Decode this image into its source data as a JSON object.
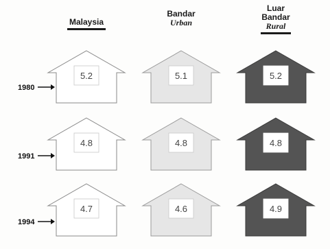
{
  "chart_data": {
    "type": "table",
    "columns": [
      {
        "label": "Malaysia",
        "sublabel": "",
        "fill": "#ffffff",
        "stroke": "#8a8a8a"
      },
      {
        "label": "Bandar",
        "sublabel": "Urban",
        "fill": "#e6e6e6",
        "stroke": "#9a9a9a"
      },
      {
        "label": "Luar Bandar",
        "sublabel": "Rural",
        "fill": "#545454",
        "stroke": "#3a3a3a"
      }
    ],
    "rows": [
      {
        "label": "1980",
        "values": [
          "5.2",
          "5.1",
          "5.2"
        ]
      },
      {
        "label": "1991",
        "values": [
          "4.8",
          "4.8",
          "4.8"
        ]
      },
      {
        "label": "1994",
        "values": [
          "4.7",
          "4.6",
          "4.9"
        ]
      }
    ],
    "arrow_glyph": "→"
  }
}
